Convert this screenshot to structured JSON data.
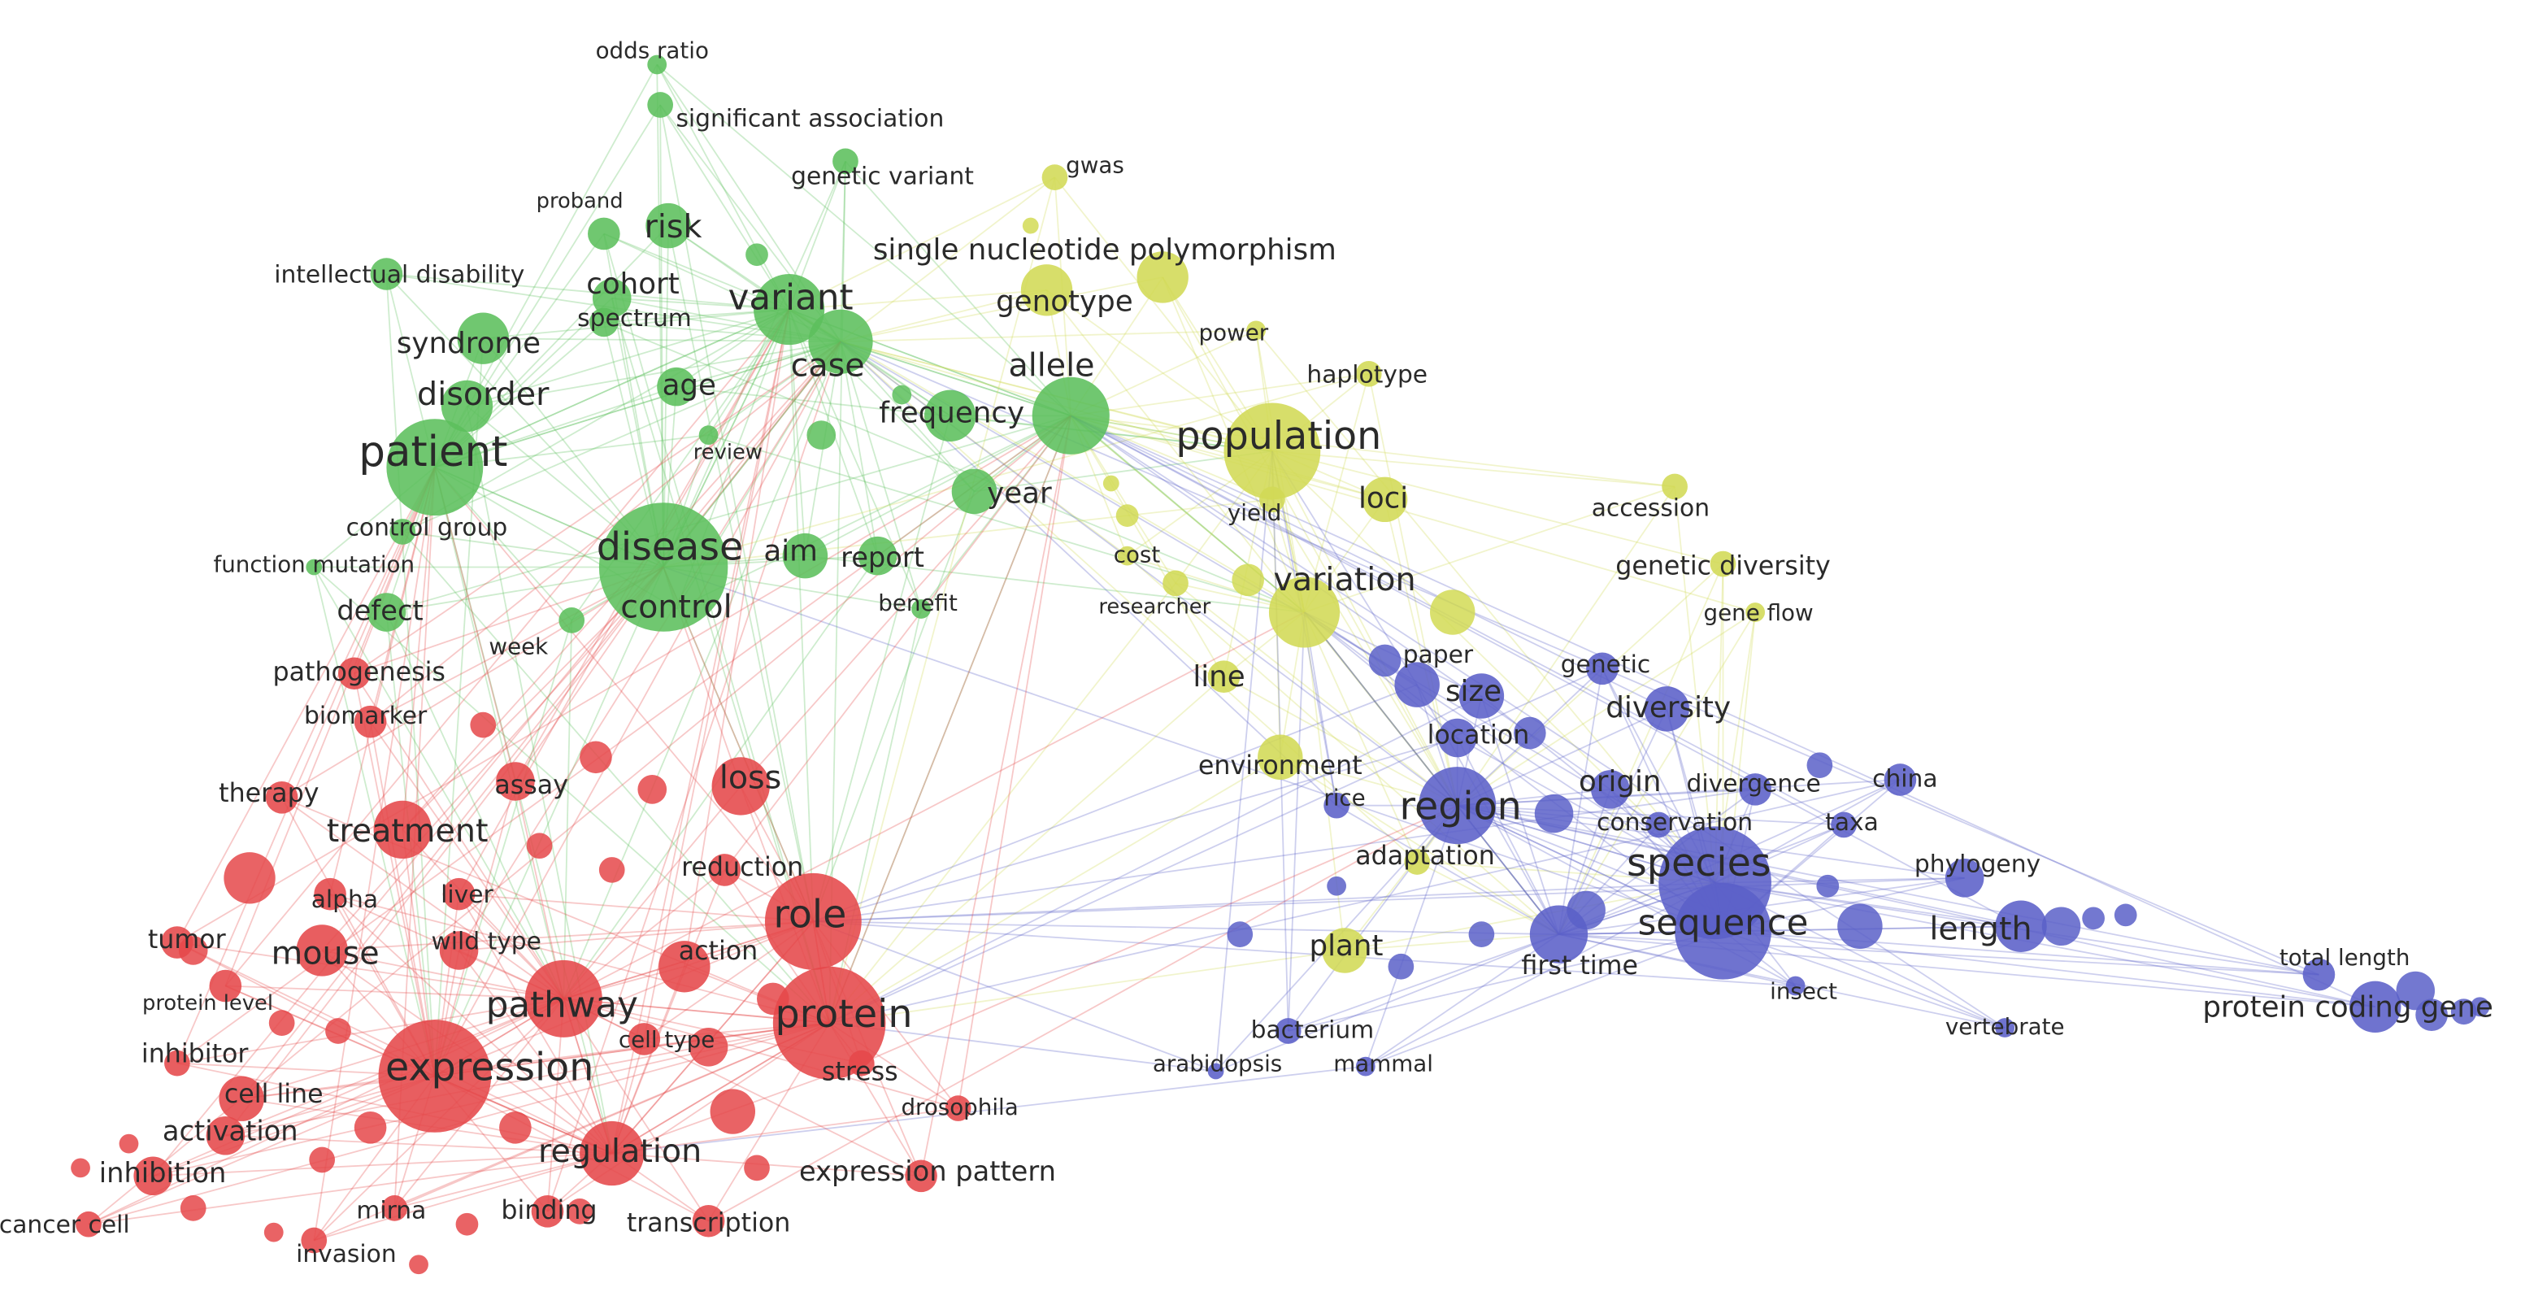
{
  "nodes": [
    {
      "label": "odds ratio",
      "color": "#5cbf5c"
    },
    {
      "label": "significant association",
      "color": "#5cbf5c"
    },
    {
      "label": "genetic variant",
      "color": "#5cbf5c"
    },
    {
      "label": "proband",
      "color": "#5cbf5c"
    },
    {
      "label": "risk",
      "color": "#5cbf5c"
    },
    {
      "label": "intellectual disability",
      "color": "#5cbf5c"
    },
    {
      "label": "cohort",
      "color": "#5cbf5c"
    },
    {
      "label": "spectrum",
      "color": "#5cbf5c"
    },
    {
      "label": "variant",
      "color": "#5cbf5c"
    },
    {
      "label": "syndrome",
      "color": "#5cbf5c"
    },
    {
      "label": "case",
      "color": "#5cbf5c"
    },
    {
      "label": "disorder",
      "color": "#5cbf5c"
    },
    {
      "label": "age",
      "color": "#5cbf5c"
    },
    {
      "label": "frequency",
      "color": "#5cbf5c"
    },
    {
      "label": "patient",
      "color": "#5cbf5c"
    },
    {
      "label": "review",
      "color": "#5cbf5c"
    },
    {
      "label": "year",
      "color": "#5cbf5c"
    },
    {
      "label": "disease",
      "color": "#5cbf5c"
    },
    {
      "label": "aim",
      "color": "#5cbf5c"
    },
    {
      "label": "report",
      "color": "#5cbf5c"
    },
    {
      "label": "control",
      "color": "#5cbf5c"
    },
    {
      "label": "control group",
      "color": "#5cbf5c"
    },
    {
      "label": "function mutation",
      "color": "#5cbf5c"
    },
    {
      "label": "defect",
      "color": "#5cbf5c"
    },
    {
      "label": "week",
      "color": "#5cbf5c"
    },
    {
      "label": "benefit",
      "color": "#5cbf5c"
    },
    {
      "label": "allele",
      "color": "#5cbf5c"
    },
    {
      "label": "gwas",
      "color": "#d2da55"
    },
    {
      "label": "single nucleotide polymorphism",
      "color": "#d2da55"
    },
    {
      "label": "genotype",
      "color": "#d2da55"
    },
    {
      "label": "power",
      "color": "#d2da55"
    },
    {
      "label": "haplotype",
      "color": "#d2da55"
    },
    {
      "label": "population",
      "color": "#d2da55"
    },
    {
      "label": "loci",
      "color": "#d2da55"
    },
    {
      "label": "yield",
      "color": "#d2da55"
    },
    {
      "label": "cost",
      "color": "#d2da55"
    },
    {
      "label": "accession",
      "color": "#d2da55"
    },
    {
      "label": "genetic diversity",
      "color": "#d2da55"
    },
    {
      "label": "variation",
      "color": "#d2da55"
    },
    {
      "label": "researcher",
      "color": "#d2da55"
    },
    {
      "label": "gene flow",
      "color": "#d2da55"
    },
    {
      "label": "line",
      "color": "#d2da55"
    },
    {
      "label": "environment",
      "color": "#d2da55"
    },
    {
      "label": "adaptation",
      "color": "#d2da55"
    },
    {
      "label": "plant",
      "color": "#d2da55"
    },
    {
      "label": "paper",
      "color": "#5b60c8"
    },
    {
      "label": "size",
      "color": "#5b60c8"
    },
    {
      "label": "genetic",
      "color": "#5b60c8"
    },
    {
      "label": "diversity",
      "color": "#5b60c8"
    },
    {
      "label": "location",
      "color": "#5b60c8"
    },
    {
      "label": "region",
      "color": "#5b60c8"
    },
    {
      "label": "rice",
      "color": "#5b60c8"
    },
    {
      "label": "origin",
      "color": "#5b60c8"
    },
    {
      "label": "divergence",
      "color": "#5b60c8"
    },
    {
      "label": "china",
      "color": "#5b60c8"
    },
    {
      "label": "conservation",
      "color": "#5b60c8"
    },
    {
      "label": "taxa",
      "color": "#5b60c8"
    },
    {
      "label": "species",
      "color": "#5b60c8"
    },
    {
      "label": "phylogeny",
      "color": "#5b60c8"
    },
    {
      "label": "sequence",
      "color": "#5b60c8"
    },
    {
      "label": "length",
      "color": "#5b60c8"
    },
    {
      "label": "first time",
      "color": "#5b60c8"
    },
    {
      "label": "insect",
      "color": "#5b60c8"
    },
    {
      "label": "total length",
      "color": "#5b60c8"
    },
    {
      "label": "protein coding gene",
      "color": "#5b60c8"
    },
    {
      "label": "bacterium",
      "color": "#5b60c8"
    },
    {
      "label": "arabidopsis",
      "color": "#5b60c8"
    },
    {
      "label": "mammal",
      "color": "#5b60c8"
    },
    {
      "label": "vertebrate",
      "color": "#5b60c8"
    },
    {
      "label": "pathogenesis",
      "color": "#e5484a"
    },
    {
      "label": "biomarker",
      "color": "#e5484a"
    },
    {
      "label": "loss",
      "color": "#e5484a"
    },
    {
      "label": "therapy",
      "color": "#e5484a"
    },
    {
      "label": "assay",
      "color": "#e5484a"
    },
    {
      "label": "treatment",
      "color": "#e5484a"
    },
    {
      "label": "reduction",
      "color": "#e5484a"
    },
    {
      "label": "alpha",
      "color": "#e5484a"
    },
    {
      "label": "liver",
      "color": "#e5484a"
    },
    {
      "label": "role",
      "color": "#e5484a"
    },
    {
      "label": "tumor",
      "color": "#e5484a"
    },
    {
      "label": "mouse",
      "color": "#e5484a"
    },
    {
      "label": "wild type",
      "color": "#e5484a"
    },
    {
      "label": "action",
      "color": "#e5484a"
    },
    {
      "label": "pathway",
      "color": "#e5484a"
    },
    {
      "label": "protein",
      "color": "#e5484a"
    },
    {
      "label": "protein level",
      "color": "#e5484a"
    },
    {
      "label": "cell type",
      "color": "#e5484a"
    },
    {
      "label": "inhibitor",
      "color": "#e5484a"
    },
    {
      "label": "expression",
      "color": "#e5484a"
    },
    {
      "label": "stress",
      "color": "#e5484a"
    },
    {
      "label": "cell line",
      "color": "#e5484a"
    },
    {
      "label": "drosophila",
      "color": "#e5484a"
    },
    {
      "label": "activation",
      "color": "#e5484a"
    },
    {
      "label": "regulation",
      "color": "#e5484a"
    },
    {
      "label": "inhibition",
      "color": "#e5484a"
    },
    {
      "label": "expression pattern",
      "color": "#e5484a"
    },
    {
      "label": "mirna",
      "color": "#e5484a"
    },
    {
      "label": "binding",
      "color": "#e5484a"
    },
    {
      "label": "transcription",
      "color": "#e5484a"
    },
    {
      "label": "cancer cell",
      "color": "#e5484a"
    },
    {
      "label": "invasion",
      "color": "#e5484a"
    }
  ]
}
